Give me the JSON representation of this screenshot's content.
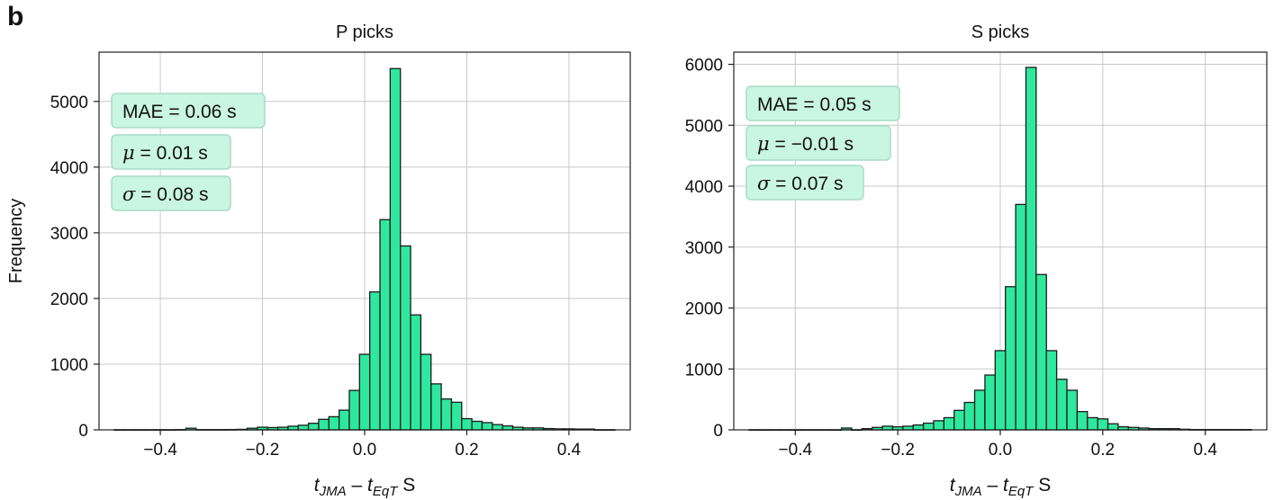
{
  "panel_label": "b",
  "xlabel_parts": {
    "t": "t",
    "sub1": "JMA",
    "dash": " – ",
    "sub2": "EqT",
    "unit": " S"
  },
  "chart_data": [
    {
      "type": "bar",
      "title": "P picks",
      "ylabel": "Frequency",
      "xlabel": "t_JMA – t_EqT S",
      "xlim": [
        -0.52,
        0.52
      ],
      "ylim": [
        0,
        5750
      ],
      "xticks": [
        -0.4,
        -0.2,
        0.0,
        0.2,
        0.4
      ],
      "xtick_labels": [
        "−0.4",
        "−0.2",
        "0.0",
        "0.2",
        "0.4"
      ],
      "yticks": [
        0,
        1000,
        2000,
        3000,
        4000,
        5000
      ],
      "grid": true,
      "bar_color": "#2ee89e",
      "bin_width": 0.02,
      "bin_edges_start": -0.49,
      "values": [
        2,
        2,
        2,
        2,
        2,
        2,
        4,
        25,
        4,
        4,
        4,
        5,
        8,
        25,
        40,
        35,
        40,
        55,
        70,
        100,
        160,
        200,
        300,
        600,
        1150,
        2100,
        3200,
        5500,
        2800,
        1750,
        1150,
        700,
        470,
        420,
        170,
        130,
        110,
        80,
        60,
        40,
        30,
        30,
        20,
        15,
        15,
        12,
        12,
        2,
        2
      ],
      "stats": [
        {
          "sym": "",
          "label": "MAE = 0.06 s"
        },
        {
          "sym": "μ",
          "label": " = 0.01 s"
        },
        {
          "sym": "σ",
          "label": " = 0.08 s"
        }
      ]
    },
    {
      "type": "bar",
      "title": "S picks",
      "ylabel": "",
      "xlabel": "t_JMA – t_EqT S",
      "xlim": [
        -0.52,
        0.52
      ],
      "ylim": [
        0,
        6200
      ],
      "xticks": [
        -0.4,
        -0.2,
        0.0,
        0.2,
        0.4
      ],
      "xtick_labels": [
        "−0.4",
        "−0.2",
        "0.0",
        "0.2",
        "0.4"
      ],
      "yticks": [
        0,
        1000,
        2000,
        3000,
        4000,
        5000,
        6000
      ],
      "grid": true,
      "bar_color": "#2ee89e",
      "bin_width": 0.02,
      "bin_edges_start": -0.49,
      "values": [
        2,
        2,
        2,
        2,
        2,
        2,
        2,
        2,
        2,
        30,
        2,
        20,
        40,
        60,
        50,
        60,
        80,
        110,
        150,
        200,
        320,
        450,
        650,
        900,
        1300,
        2350,
        3700,
        5950,
        2550,
        1300,
        830,
        650,
        300,
        200,
        180,
        100,
        50,
        40,
        30,
        20,
        20,
        20,
        10,
        5,
        5,
        5,
        5,
        5,
        5
      ],
      "stats": [
        {
          "sym": "",
          "label": "MAE = 0.05 s"
        },
        {
          "sym": "μ",
          "label": " = −0.01 s"
        },
        {
          "sym": "σ",
          "label": " = 0.07 s"
        }
      ]
    }
  ]
}
